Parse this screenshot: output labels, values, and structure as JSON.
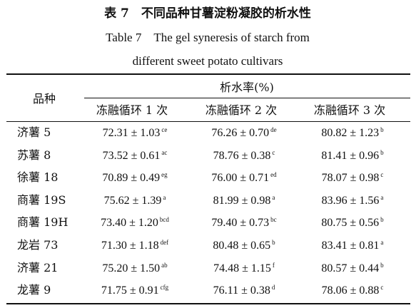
{
  "header": {
    "title_cn": "表 7　不同品种甘薯淀粉凝胶的析水性",
    "title_en_line1": "Table 7　The gel syneresis of starch from",
    "title_en_line2": "different sweet potato cultivars"
  },
  "table": {
    "corner": "品种",
    "group_header": "析水率(%)",
    "columns": [
      "冻融循环 1 次",
      "冻融循环 2 次",
      "冻融循环 3 次"
    ],
    "rows": [
      {
        "variety": "济薯 5",
        "cells": [
          {
            "text": "72.31 ± 1.03",
            "sup": "ce"
          },
          {
            "text": "76.26 ± 0.70",
            "sup": "de"
          },
          {
            "text": "80.82 ± 1.23",
            "sup": "b"
          }
        ]
      },
      {
        "variety": "苏薯 8",
        "cells": [
          {
            "text": "73.52 ± 0.61",
            "sup": "ac"
          },
          {
            "text": "78.76 ± 0.38",
            "sup": "c"
          },
          {
            "text": "81.41 ± 0.96",
            "sup": "b"
          }
        ]
      },
      {
        "variety": "徐薯 18",
        "cells": [
          {
            "text": "70.89 ± 0.49",
            "sup": "eg"
          },
          {
            "text": "76.00 ± 0.71",
            "sup": "ed"
          },
          {
            "text": "78.07 ± 0.98",
            "sup": "c"
          }
        ]
      },
      {
        "variety": "商薯 19S",
        "cells": [
          {
            "text": "75.62 ± 1.39",
            "sup": "a"
          },
          {
            "text": "81.99 ± 0.98",
            "sup": "a"
          },
          {
            "text": "83.96 ± 1.56",
            "sup": "a"
          }
        ]
      },
      {
        "variety": "商薯 19H",
        "cells": [
          {
            "text": "73.40 ± 1.20",
            "sup": "bcd"
          },
          {
            "text": "79.40 ± 0.73",
            "sup": "bc"
          },
          {
            "text": "80.75 ± 0.56",
            "sup": "b"
          }
        ]
      },
      {
        "variety": "龙岩 73",
        "cells": [
          {
            "text": "71.30 ± 1.18",
            "sup": "def"
          },
          {
            "text": "80.48 ± 0.65",
            "sup": "b"
          },
          {
            "text": "83.41 ± 0.81",
            "sup": "a"
          }
        ]
      },
      {
        "variety": "济薯 21",
        "cells": [
          {
            "text": "75.20 ± 1.50",
            "sup": "ab"
          },
          {
            "text": "74.48 ± 1.15",
            "sup": "f"
          },
          {
            "text": "80.57 ± 0.44",
            "sup": "b"
          }
        ]
      },
      {
        "variety": "龙薯 9",
        "cells": [
          {
            "text": "71.75 ± 0.91",
            "sup": "cfg"
          },
          {
            "text": "76.11 ± 0.38",
            "sup": "d"
          },
          {
            "text": "78.06 ± 0.88",
            "sup": "c"
          }
        ]
      }
    ]
  }
}
